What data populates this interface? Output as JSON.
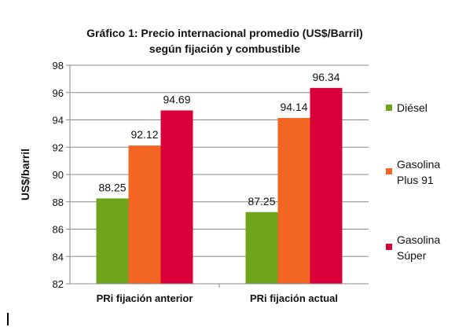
{
  "chart_data": {
    "type": "bar",
    "title": [
      "Gráfico 1: Precio internacional promedio (US$/Barril)",
      "según fijación y combustible"
    ],
    "ylabel": "US$/barril",
    "xlabel": "",
    "ylim": [
      82,
      98
    ],
    "yticks": [
      82,
      84,
      86,
      88,
      90,
      92,
      94,
      96,
      98
    ],
    "grid": true,
    "legend_position": "right",
    "categories": [
      "PRi fijación anterior",
      "PRi fijación actual"
    ],
    "series": [
      {
        "name": [
          "Diésel"
        ],
        "color": "#6ea51c",
        "values": [
          88.25,
          87.25
        ],
        "labels": [
          "88.25",
          "87.25"
        ]
      },
      {
        "name": [
          "Gasolina",
          "Plus 91"
        ],
        "color": "#f26522",
        "values": [
          92.12,
          94.14
        ],
        "labels": [
          "92.12",
          "94.14"
        ]
      },
      {
        "name": [
          "Gasolina",
          "Súper"
        ],
        "color": "#d9003a",
        "values": [
          94.69,
          96.34
        ],
        "labels": [
          "94.69",
          "96.34"
        ]
      }
    ]
  }
}
